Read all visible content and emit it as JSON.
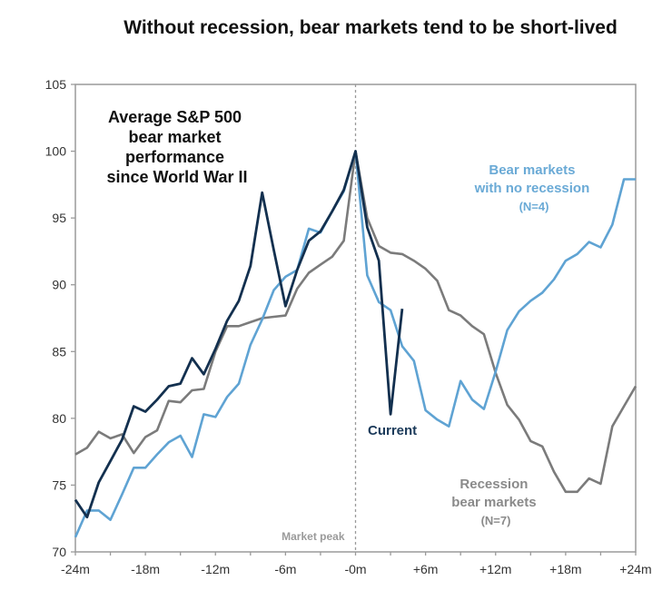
{
  "chart_data": {
    "type": "line",
    "title": "Without recession, bear markets tend to be short-lived",
    "xlabel": "",
    "ylabel": "",
    "ylim": [
      70,
      105
    ],
    "xlim": [
      -24,
      24
    ],
    "grid": false,
    "x_ticks": [
      {
        "value": -24,
        "label": "-24m"
      },
      {
        "value": -18,
        "label": "-18m"
      },
      {
        "value": -12,
        "label": "-12m"
      },
      {
        "value": -6,
        "label": "-6m"
      },
      {
        "value": 0,
        "label": "-0m"
      },
      {
        "value": 6,
        "label": "+6m"
      },
      {
        "value": 12,
        "label": "+12m"
      },
      {
        "value": 18,
        "label": "+18m"
      },
      {
        "value": 24,
        "label": "+24m"
      }
    ],
    "y_ticks": [
      70,
      75,
      80,
      85,
      90,
      95,
      100,
      105
    ],
    "peak_marker": {
      "x": 0,
      "label": "Market peak"
    },
    "annotations": [
      {
        "text_lines": [
          "Average S&P 500",
          "bear market",
          "performance",
          "since World War II"
        ],
        "color": "#111111"
      },
      {
        "text_lines": [
          "Bear markets",
          "with no recession",
          "(N=4)"
        ],
        "color": "#6aaad6"
      },
      {
        "text_lines": [
          "Recession",
          "bear markets",
          "(N=7)"
        ],
        "color": "#8a8a8a"
      },
      {
        "text_lines": [
          "Current"
        ],
        "color": "#1b3a5a"
      }
    ],
    "series": [
      {
        "name": "Recession bear markets (N=7)",
        "color": "#7b7b7b",
        "x": [
          -24,
          -23,
          -22,
          -21,
          -20,
          -19,
          -18,
          -17,
          -16,
          -15,
          -14,
          -13,
          -12,
          -11,
          -10,
          -9,
          -8,
          -7,
          -6,
          -5,
          -4,
          -3,
          -2,
          -1,
          0,
          1,
          2,
          3,
          4,
          5,
          6,
          7,
          8,
          9,
          10,
          11,
          12,
          13,
          14,
          15,
          16,
          17,
          18,
          19,
          20,
          21,
          22,
          23,
          24
        ],
        "values": [
          77.3,
          77.8,
          79.0,
          78.5,
          78.8,
          77.4,
          78.6,
          79.1,
          81.3,
          81.2,
          82.1,
          82.2,
          85.0,
          86.9,
          86.9,
          87.2,
          87.5,
          87.6,
          87.7,
          89.7,
          90.9,
          91.5,
          92.1,
          93.3,
          100.0,
          95.0,
          92.9,
          92.4,
          92.3,
          91.8,
          91.2,
          90.3,
          88.1,
          87.7,
          86.9,
          86.3,
          83.4,
          81.0,
          79.9,
          78.3,
          77.9,
          76.0,
          74.5,
          74.5,
          75.5,
          75.1,
          79.4,
          80.9,
          82.4
        ]
      },
      {
        "name": "Bear markets with no recession (N=4)",
        "color": "#5fa3d3",
        "x": [
          -24,
          -23,
          -22,
          -21,
          -20,
          -19,
          -18,
          -17,
          -16,
          -15,
          -14,
          -13,
          -12,
          -11,
          -10,
          -9,
          -8,
          -7,
          -6,
          -5,
          -4,
          -3,
          -2,
          -1,
          0,
          1,
          2,
          3,
          4,
          5,
          6,
          7,
          8,
          9,
          10,
          11,
          12,
          13,
          14,
          15,
          16,
          17,
          18,
          19,
          20,
          21,
          22,
          23,
          24
        ],
        "values": [
          71.1,
          73.1,
          73.1,
          72.4,
          74.3,
          76.3,
          76.3,
          77.3,
          78.2,
          78.7,
          77.1,
          80.3,
          80.1,
          81.6,
          82.6,
          85.5,
          87.4,
          89.6,
          90.6,
          91.1,
          94.2,
          93.9,
          95.5,
          97.0,
          100.0,
          90.7,
          88.7,
          88.1,
          85.4,
          84.3,
          80.6,
          79.9,
          79.4,
          82.8,
          81.4,
          80.7,
          83.5,
          86.6,
          88.0,
          88.8,
          89.4,
          90.4,
          91.8,
          92.3,
          93.2,
          92.8,
          94.5,
          97.9,
          97.9
        ]
      },
      {
        "name": "Current",
        "color": "#13304f",
        "x": [
          -24,
          -23,
          -22,
          -21,
          -20,
          -19,
          -18,
          -17,
          -16,
          -15,
          -14,
          -13,
          -12,
          -11,
          -10,
          -9,
          -8,
          -7,
          -6,
          -5,
          -4,
          -3,
          -2,
          -1,
          0,
          1,
          2,
          3,
          4
        ],
        "values": [
          73.9,
          72.6,
          75.2,
          76.8,
          78.4,
          80.9,
          80.5,
          81.4,
          82.4,
          82.6,
          84.5,
          83.3,
          85.2,
          87.3,
          88.8,
          91.4,
          96.9,
          92.6,
          88.4,
          91.1,
          93.3,
          94.0,
          95.5,
          97.1,
          100.0,
          94.3,
          91.8,
          80.3,
          88.2
        ]
      }
    ]
  }
}
